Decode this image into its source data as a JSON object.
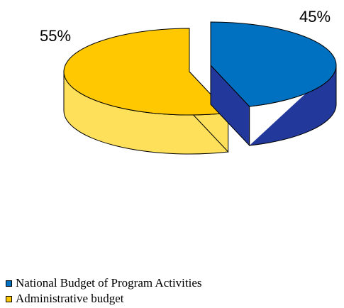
{
  "chart_data": {
    "type": "pie",
    "title": "",
    "slices": [
      {
        "name": "National Budget of Program Activities",
        "value": 45,
        "label": "45%",
        "color": "#0070c0",
        "side_color": "#22389a"
      },
      {
        "name": "Administrative budget",
        "value": 55,
        "label": "55%",
        "color": "#ffc800",
        "side_color": "#ffe05a"
      }
    ],
    "legend_position": "bottom-left",
    "three_d": true,
    "exploded": true
  }
}
